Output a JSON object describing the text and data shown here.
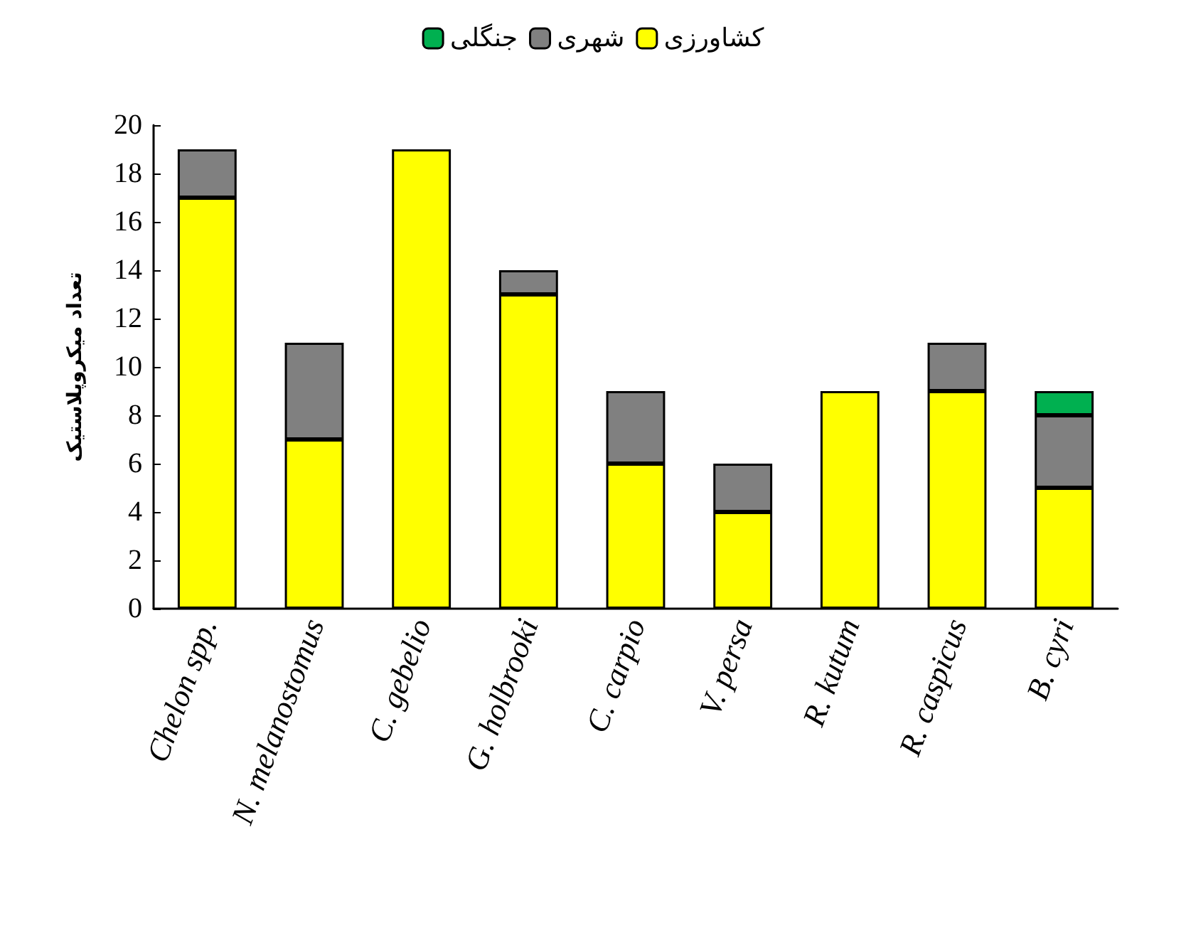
{
  "chart_data": {
    "type": "bar",
    "stacked": true,
    "ylabel": "تعداد میکروپلاستیک",
    "categories": [
      "Chelon spp.",
      "N. melanostomus",
      "C. gebelio",
      "G. holbrooki",
      "C. carpio",
      "V. persa",
      "R. kutum",
      "R. caspicus",
      "B. cyri"
    ],
    "series": [
      {
        "name": "کشاورزی",
        "color": "#ffff00",
        "values": [
          17,
          7,
          19,
          13,
          6,
          4,
          9,
          9,
          5
        ]
      },
      {
        "name": "شهری",
        "color": "#808080",
        "values": [
          2,
          4,
          null,
          1,
          3,
          2,
          null,
          2,
          3
        ]
      },
      {
        "name": "جنگلی",
        "color": "#00b050",
        "values": [
          null,
          null,
          null,
          null,
          null,
          null,
          null,
          null,
          1
        ]
      }
    ],
    "ylim": [
      0,
      20
    ],
    "yticks": [
      0,
      2,
      4,
      6,
      8,
      10,
      12,
      14,
      16,
      18,
      20
    ],
    "grid": false,
    "legend": "top"
  }
}
